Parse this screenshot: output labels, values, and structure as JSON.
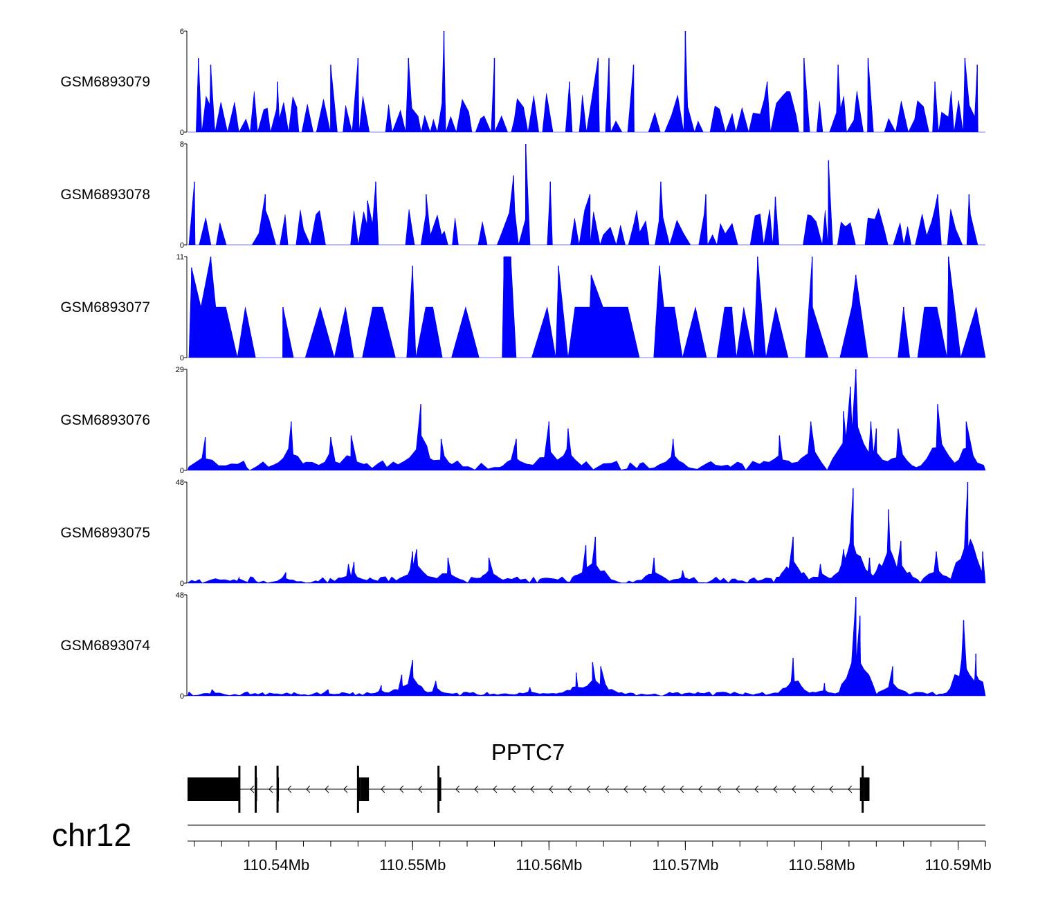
{
  "chart_data": {
    "type": "area",
    "title": "",
    "chromosome": "chr12",
    "gene": "PPTC7",
    "strand": "-",
    "region_mb": [
      110.5335,
      110.592
    ],
    "series_color": "#0000ff",
    "xaxis": {
      "ticks": [
        110.54,
        110.55,
        110.56,
        110.57,
        110.58,
        110.59
      ],
      "tick_labels": [
        "110.54Mb",
        "110.55Mb",
        "110.56Mb",
        "110.57Mb",
        "110.58Mb",
        "110.59Mb"
      ],
      "minor_step_mb": 0.002
    },
    "series": [
      {
        "name": "GSM6893079",
        "ymax": 6,
        "ymin": 0,
        "ymax_label": "6",
        "ymin_label": "0",
        "peaks": [
          [
            110.5343,
            4.4
          ],
          [
            110.5352,
            4.0
          ],
          [
            110.5401,
            3.0
          ],
          [
            110.5415,
            1.5
          ],
          [
            110.544,
            4.0
          ],
          [
            110.546,
            4.4
          ],
          [
            110.5497,
            4.4
          ],
          [
            110.5523,
            6.0
          ],
          [
            110.556,
            4.4
          ],
          [
            110.5615,
            3.0
          ],
          [
            110.5636,
            4.4
          ],
          [
            110.5644,
            4.4
          ],
          [
            110.5662,
            4.0
          ],
          [
            110.57,
            6.0
          ],
          [
            110.576,
            3.0
          ],
          [
            110.5787,
            4.4
          ],
          [
            110.5812,
            4.0
          ],
          [
            110.5834,
            4.4
          ],
          [
            110.5883,
            3.0
          ],
          [
            110.5905,
            4.4
          ],
          [
            110.5914,
            4.0
          ]
        ]
      },
      {
        "name": "GSM6893078",
        "ymax": 8,
        "ymin": 0,
        "ymax_label": "8",
        "ymin_label": "0",
        "peaks": [
          [
            110.534,
            5.0
          ],
          [
            110.5392,
            4.0
          ],
          [
            110.5467,
            3.5
          ],
          [
            110.5473,
            5.0
          ],
          [
            110.551,
            4.0
          ],
          [
            110.5574,
            5.5
          ],
          [
            110.5583,
            8.0
          ],
          [
            110.5601,
            5.0
          ],
          [
            110.563,
            4.0
          ],
          [
            110.5682,
            5.0
          ],
          [
            110.5715,
            4.0
          ],
          [
            110.5766,
            3.8
          ],
          [
            110.5805,
            6.7
          ],
          [
            110.5885,
            4.0
          ],
          [
            110.5908,
            4.0
          ]
        ]
      },
      {
        "name": "GSM6893077",
        "ymax": 11,
        "ymin": 0,
        "ymax_label": "11",
        "ymin_label": "0",
        "peaks": [
          [
            110.5338,
            9.8
          ],
          [
            110.5352,
            11.0
          ],
          [
            110.5405,
            5.5
          ],
          [
            110.55,
            10.0
          ],
          [
            110.5567,
            11.0
          ],
          [
            110.5572,
            11.0
          ],
          [
            110.5607,
            10.0
          ],
          [
            110.5631,
            9.0
          ],
          [
            110.5681,
            10.0
          ],
          [
            110.5734,
            5.5
          ],
          [
            110.5753,
            11.0
          ],
          [
            110.5793,
            11.0
          ],
          [
            110.5825,
            9.0
          ],
          [
            110.586,
            5.5
          ],
          [
            110.5893,
            11.0
          ]
        ]
      },
      {
        "name": "GSM6893076",
        "ymax": 29,
        "ymin": 0,
        "ymax_label": "29",
        "ymin_label": "0",
        "peaks": [
          [
            110.5348,
            9.5
          ],
          [
            110.5411,
            14.0
          ],
          [
            110.544,
            9.5
          ],
          [
            110.5455,
            10.0
          ],
          [
            110.5506,
            19.0
          ],
          [
            110.5521,
            9.0
          ],
          [
            110.5576,
            9.0
          ],
          [
            110.56,
            14.0
          ],
          [
            110.5614,
            12.0
          ],
          [
            110.5691,
            9.0
          ],
          [
            110.5769,
            10.0
          ],
          [
            110.5792,
            14.0
          ],
          [
            110.5816,
            17.0
          ],
          [
            110.5821,
            24.0
          ],
          [
            110.5825,
            29.0
          ],
          [
            110.5836,
            14.0
          ],
          [
            110.584,
            12.0
          ],
          [
            110.5856,
            12.0
          ],
          [
            110.5885,
            19.0
          ],
          [
            110.5906,
            14.0
          ]
        ]
      },
      {
        "name": "GSM6893075",
        "ymax": 48,
        "ymin": 0,
        "ymax_label": "48",
        "ymin_label": "0",
        "peaks": [
          [
            110.5373,
            2.0
          ],
          [
            110.5407,
            5.0
          ],
          [
            110.5453,
            9.0
          ],
          [
            110.5457,
            10.0
          ],
          [
            110.55,
            15.0
          ],
          [
            110.5503,
            16.0
          ],
          [
            110.5526,
            12.0
          ],
          [
            110.5556,
            12.0
          ],
          [
            110.5627,
            18.0
          ],
          [
            110.5634,
            22.0
          ],
          [
            110.5677,
            12.0
          ],
          [
            110.5698,
            6.0
          ],
          [
            110.5779,
            22.0
          ],
          [
            110.5799,
            9.0
          ],
          [
            110.5816,
            16.0
          ],
          [
            110.5823,
            45.0
          ],
          [
            110.5835,
            12.0
          ],
          [
            110.5849,
            35.0
          ],
          [
            110.5858,
            20.0
          ],
          [
            110.5884,
            15.0
          ],
          [
            110.5907,
            48.0
          ],
          [
            110.5918,
            15.0
          ]
        ]
      },
      {
        "name": "GSM6893074",
        "ymax": 48,
        "ymin": 0,
        "ymax_label": "48",
        "ymin_label": "0",
        "peaks": [
          [
            110.5353,
            3.0
          ],
          [
            110.5438,
            3.0
          ],
          [
            110.5477,
            5.0
          ],
          [
            110.5492,
            10.0
          ],
          [
            110.55,
            17.0
          ],
          [
            110.5517,
            7.0
          ],
          [
            110.5586,
            4.0
          ],
          [
            110.562,
            11.0
          ],
          [
            110.5632,
            16.0
          ],
          [
            110.5638,
            14.0
          ],
          [
            110.5779,
            18.0
          ],
          [
            110.5802,
            6.0
          ],
          [
            110.5825,
            47.0
          ],
          [
            110.5828,
            38.0
          ],
          [
            110.5852,
            14.0
          ],
          [
            110.5904,
            36.0
          ],
          [
            110.5913,
            20.0
          ]
        ]
      }
    ],
    "gene_model": {
      "line_start_mb": 110.5335,
      "line_end_mb": 110.5832,
      "exons_mb": [
        [
          110.5335,
          110.5373
        ],
        [
          110.5385,
          110.5386
        ],
        [
          110.5401,
          110.5402
        ],
        [
          110.546,
          110.5462
        ],
        [
          110.5462,
          110.5468
        ],
        [
          110.5519,
          110.5521
        ],
        [
          110.5828,
          110.5831
        ],
        [
          110.5831,
          110.5835
        ]
      ],
      "tall_exon_mb": [
        110.5373,
        110.5385,
        110.5401,
        110.546,
        110.5519,
        110.583
      ]
    }
  }
}
